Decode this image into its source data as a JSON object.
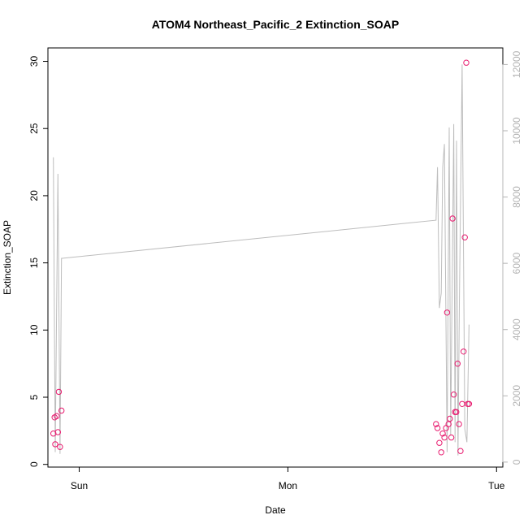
{
  "chart_data": {
    "type": "scatter",
    "title": "ATOM4 Northeast_Pacific_2 Extinction_SOAP",
    "xlabel": "Date",
    "ylabel": "Extinction_SOAP",
    "x_ticks": [
      "Sun",
      "Mon",
      "Tue"
    ],
    "x_range": [
      -0.15,
      2.03
    ],
    "y_left": {
      "ticks": [
        0,
        5,
        10,
        15,
        20,
        25,
        30
      ],
      "range": [
        -0.2,
        31
      ]
    },
    "y_right": {
      "ticks": [
        0,
        2000,
        4000,
        6000,
        8000,
        10000,
        12000
      ],
      "range": [
        -150,
        12500
      ]
    },
    "grid": false,
    "legend": "none",
    "colors": {
      "points": "#e8196e",
      "line": "#bdbdbd",
      "right_axis": "#b4b4b4",
      "axis": "#000000"
    },
    "series": [
      {
        "axis": "left",
        "style": "points",
        "x": [
          -0.124,
          -0.118,
          -0.115,
          -0.108,
          -0.102,
          -0.098,
          -0.092,
          -0.085,
          1.71,
          1.717,
          1.726,
          1.735,
          1.742,
          1.75,
          1.758,
          1.763,
          1.77,
          1.776,
          1.783,
          1.789,
          1.795,
          1.801,
          1.807,
          1.813,
          1.82,
          1.827,
          1.835,
          1.842,
          1.848,
          1.855,
          1.862,
          1.868
        ],
        "y": [
          2.3,
          3.5,
          1.5,
          3.6,
          2.4,
          5.4,
          1.3,
          4.0,
          3.0,
          2.7,
          1.6,
          0.9,
          2.3,
          2.0,
          2.7,
          11.3,
          3.0,
          3.4,
          2.0,
          18.3,
          5.2,
          3.9,
          3.9,
          7.5,
          3.0,
          1.0,
          4.5,
          8.4,
          16.9,
          29.9,
          4.5,
          4.5
        ]
      },
      {
        "axis": "right",
        "style": "line",
        "x": [
          -0.124,
          -0.115,
          -0.102,
          -0.092,
          -0.085,
          -0.082,
          1.71,
          1.717,
          1.726,
          1.735,
          1.742,
          1.75,
          1.763,
          1.773,
          1.78,
          1.795,
          1.801,
          1.808,
          1.815,
          1.822,
          1.835,
          1.848,
          1.858,
          1.868
        ],
        "y": [
          9200,
          300,
          8700,
          250,
          6150,
          6150,
          7300,
          8900,
          4650,
          5100,
          8900,
          9600,
          300,
          10100,
          800,
          10200,
          600,
          9700,
          200,
          5000,
          12000,
          1000,
          600,
          4150
        ]
      }
    ]
  }
}
